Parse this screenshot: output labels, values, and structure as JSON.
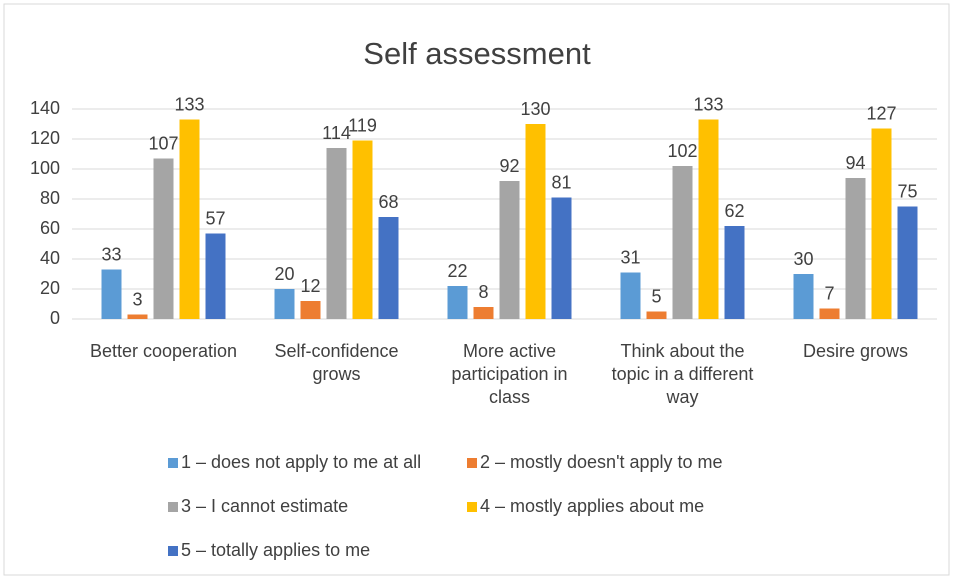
{
  "chart_data": {
    "type": "bar",
    "title": "Self assessment",
    "categories": [
      "Better cooperation",
      "Self-confidence grows",
      "More active participation in class",
      "Think about the topic in a different way",
      "Desire grows"
    ],
    "series": [
      {
        "name": "1 – does not apply to me at all",
        "color": "#5B9BD5",
        "values": [
          33,
          20,
          22,
          31,
          30
        ]
      },
      {
        "name": "2 – mostly doesn't apply to me",
        "color": "#ED7D31",
        "values": [
          3,
          12,
          8,
          5,
          7
        ]
      },
      {
        "name": "3 – I cannot estimate",
        "color": "#A5A5A5",
        "values": [
          107,
          114,
          92,
          102,
          94
        ]
      },
      {
        "name": "4 – mostly applies about me",
        "color": "#FFC000",
        "values": [
          133,
          119,
          130,
          133,
          127
        ]
      },
      {
        "name": "5 – totally applies to me",
        "color": "#4472C4",
        "values": [
          57,
          68,
          81,
          62,
          75
        ]
      }
    ],
    "ylim": [
      0,
      140
    ],
    "yticks": [
      0,
      20,
      40,
      60,
      80,
      100,
      120,
      140
    ],
    "grid": true,
    "legend": "bottom"
  }
}
